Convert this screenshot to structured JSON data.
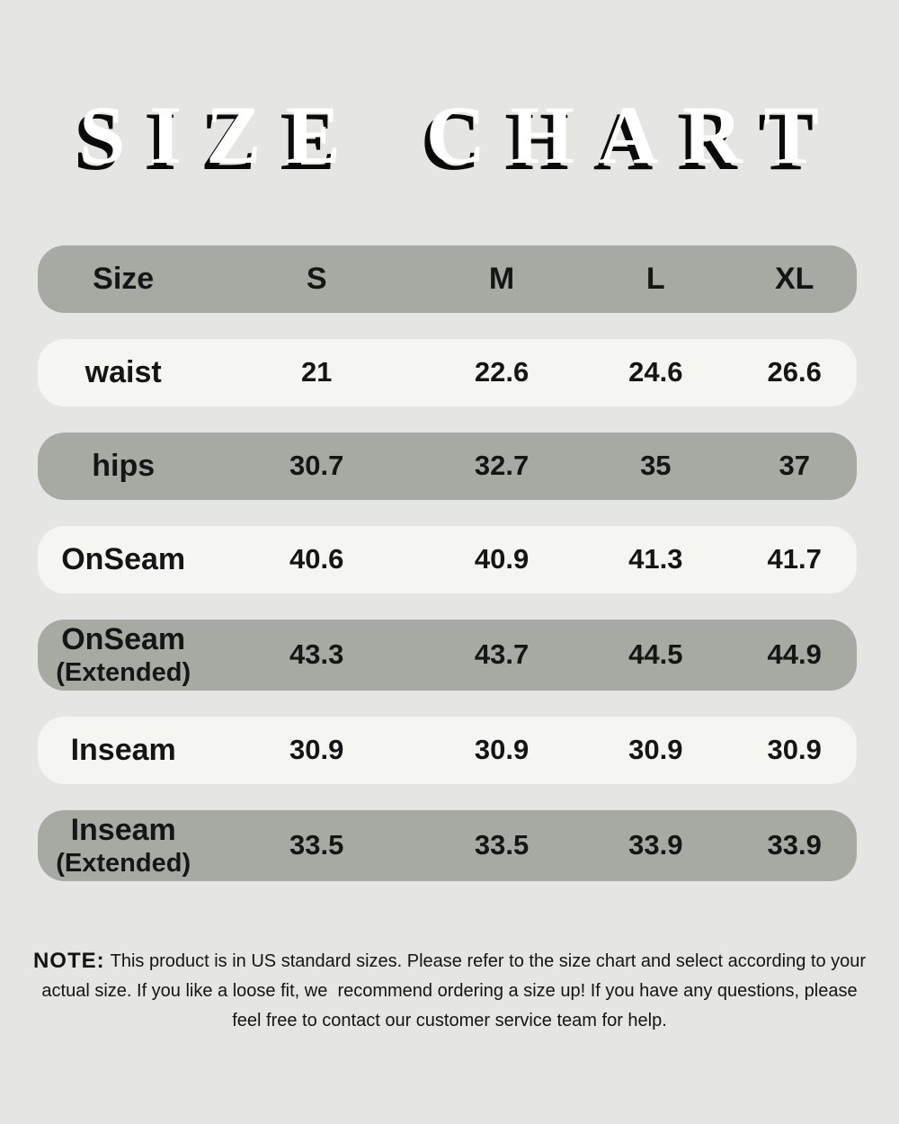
{
  "title": {
    "text": "SIZE CHART"
  },
  "size_chart": {
    "columns": [
      "Size",
      "S",
      "M",
      "L",
      "XL"
    ],
    "rows": [
      {
        "label": "waist",
        "sublabel": "",
        "shade": "light",
        "values": [
          "21",
          "22.6",
          "24.6",
          "26.6"
        ]
      },
      {
        "label": "hips",
        "sublabel": "",
        "shade": "dark",
        "values": [
          "30.7",
          "32.7",
          "35",
          "37"
        ]
      },
      {
        "label": "OnSeam",
        "sublabel": "",
        "shade": "light",
        "values": [
          "40.6",
          "40.9",
          "41.3",
          "41.7"
        ]
      },
      {
        "label": "OnSeam",
        "sublabel": "(Extended)",
        "shade": "dark",
        "values": [
          "43.3",
          "43.7",
          "44.5",
          "44.9"
        ]
      },
      {
        "label": "Inseam",
        "sublabel": "",
        "shade": "light",
        "values": [
          "30.9",
          "30.9",
          "30.9",
          "30.9"
        ]
      },
      {
        "label": "Inseam",
        "sublabel": "(Extended)",
        "shade": "dark",
        "values": [
          "33.5",
          "33.5",
          "33.9",
          "33.9"
        ]
      }
    ]
  },
  "note": {
    "label": "NOTE:",
    "lines": [
      "This product is in US standard sizes. Please refer to the size chart and select according to your",
      "actual size. If you like a loose fit, we  recommend ordering a size up! If you have any questions, please",
      "feel free to contact our customer service team for help."
    ]
  },
  "colors": {
    "bg": "#e5e5e3",
    "row_dark": "#a7aaa2",
    "row_light": "#f5f5f2",
    "text": "#151515",
    "title_fill": "#ffffff",
    "title_shadow": "#0a0a0a"
  },
  "chart_data": {
    "type": "table",
    "title": "SIZE CHART",
    "columns": [
      "Size",
      "S",
      "M",
      "L",
      "XL"
    ],
    "rows": [
      [
        "waist",
        "21",
        "22.6",
        "24.6",
        "26.6"
      ],
      [
        "hips",
        "30.7",
        "32.7",
        "35",
        "37"
      ],
      [
        "OnSeam",
        "40.6",
        "40.9",
        "41.3",
        "41.7"
      ],
      [
        "OnSeam (Extended)",
        "43.3",
        "43.7",
        "44.5",
        "44.9"
      ],
      [
        "Inseam",
        "30.9",
        "30.9",
        "30.9",
        "30.9"
      ],
      [
        "Inseam (Extended)",
        "33.5",
        "33.5",
        "33.9",
        "33.9"
      ]
    ],
    "note": "NOTE: This product is in US standard sizes. Please refer to the size chart and select according to your actual size. If you like a loose fit, we recommend ordering a size up! If you have any questions, please feel free to contact our customer service team for help."
  }
}
